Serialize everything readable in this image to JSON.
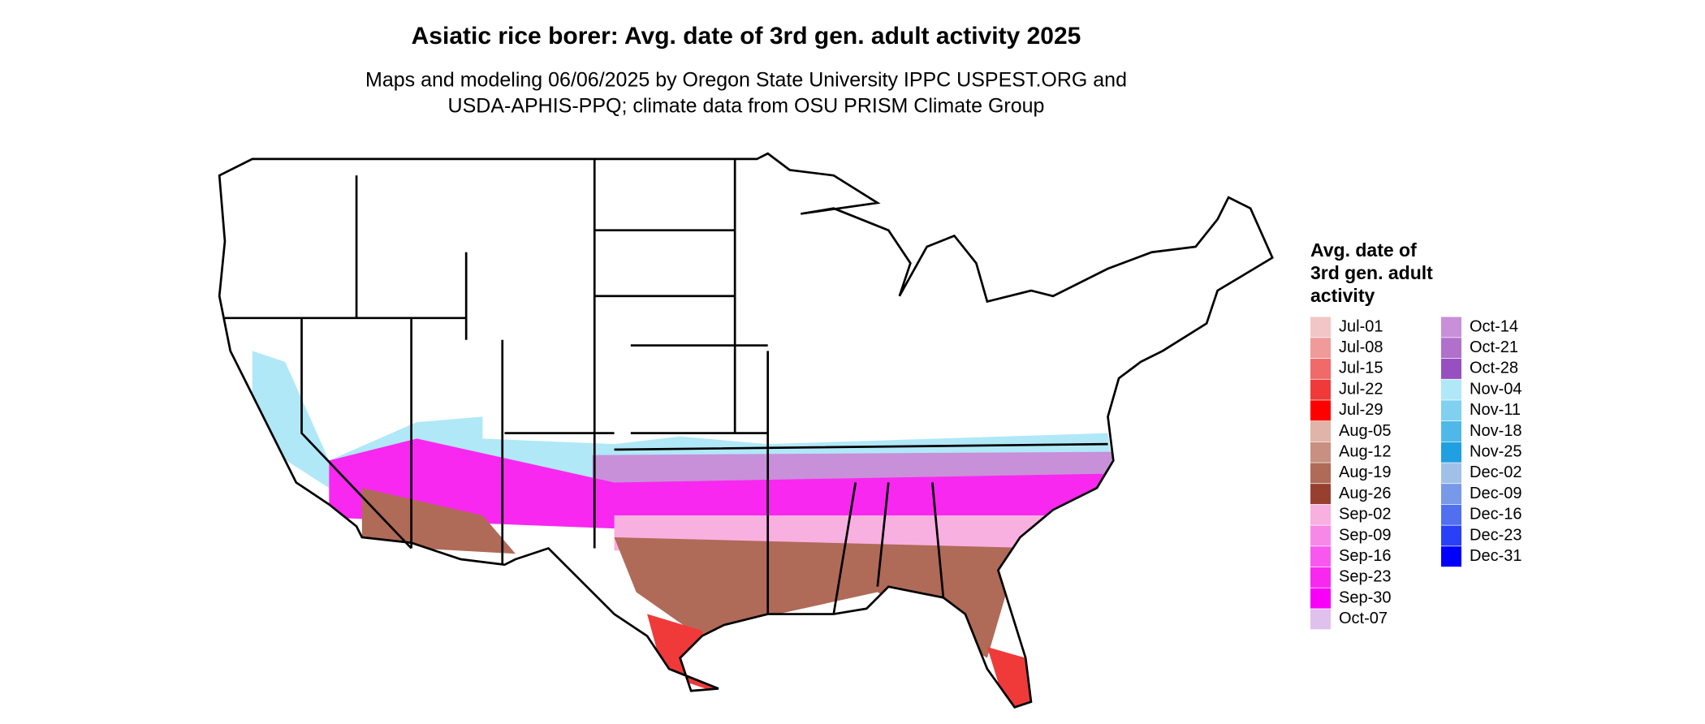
{
  "title": "Asiatic rice borer: Avg. date of 3rd gen. adult activity 2025",
  "subtitle": [
    "Maps and modeling 06/06/2025 by Oregon State University IPPC USPEST.ORG and",
    "USDA-APHIS-PPQ; climate data from OSU PRISM Climate Group"
  ],
  "legend": {
    "title": [
      "Avg. date of",
      "3rd gen. adult",
      "activity"
    ],
    "items": [
      {
        "label": "Jul-01",
        "color": "#f2c6c6"
      },
      {
        "label": "Jul-08",
        "color": "#f09a9a"
      },
      {
        "label": "Jul-15",
        "color": "#f06a6a"
      },
      {
        "label": "Jul-22",
        "color": "#f03a3a"
      },
      {
        "label": "Jul-29",
        "color": "#ff0000"
      },
      {
        "label": "Aug-05",
        "color": "#e0b4a8"
      },
      {
        "label": "Aug-12",
        "color": "#c89080"
      },
      {
        "label": "Aug-19",
        "color": "#b06a58"
      },
      {
        "label": "Aug-26",
        "color": "#984030"
      },
      {
        "label": "Sep-02",
        "color": "#f8b0e0"
      },
      {
        "label": "Sep-09",
        "color": "#f888e8"
      },
      {
        "label": "Sep-16",
        "color": "#f858f0"
      },
      {
        "label": "Sep-23",
        "color": "#f828f0"
      },
      {
        "label": "Sep-30",
        "color": "#f800f8"
      },
      {
        "label": "Oct-07",
        "color": "#e0c0ec"
      },
      {
        "label": "Oct-14",
        "color": "#c890d8"
      },
      {
        "label": "Oct-21",
        "color": "#b070cc"
      },
      {
        "label": "Oct-28",
        "color": "#9850c0"
      },
      {
        "label": "Nov-04",
        "color": "#b0e8f8"
      },
      {
        "label": "Nov-11",
        "color": "#80d0f0"
      },
      {
        "label": "Nov-18",
        "color": "#50b8e8"
      },
      {
        "label": "Nov-25",
        "color": "#20a0e0"
      },
      {
        "label": "Dec-02",
        "color": "#a0c0e8"
      },
      {
        "label": "Dec-09",
        "color": "#7898e8"
      },
      {
        "label": "Dec-16",
        "color": "#5070f0"
      },
      {
        "label": "Dec-23",
        "color": "#2840f8"
      },
      {
        "label": "Dec-31",
        "color": "#0000ff"
      }
    ]
  }
}
